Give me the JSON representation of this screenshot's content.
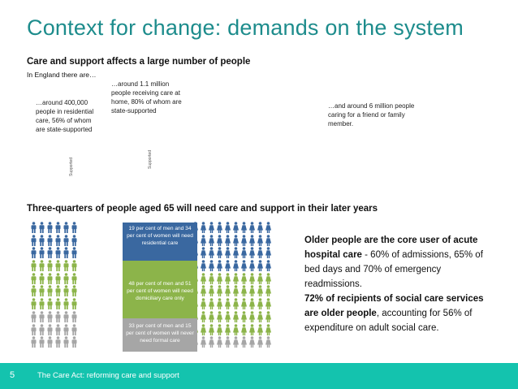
{
  "title": "Context for change: demands on the system",
  "section1": {
    "heading": "Care and support affects a large number of people",
    "subheading": "In England there are…",
    "annotations": [
      "…around 400,000 people in residential care, 56% of whom are state-supported",
      "…around 1.1 million people receiving care at home, 80% of whom are state-supported",
      "…and around 6 million people caring for a friend or family member."
    ],
    "supported_label_1": "Supported",
    "supported_label_2": "Supported"
  },
  "section2": {
    "heading": "Three-quarters of people aged 65 will need care and support in their later years",
    "callouts": [
      "19 per cent of men and 34 per cent of women will need residential care",
      "48 per cent of men and 51 per cent of women will need domiciliary care only",
      "33 per cent of men and 15 per cent of women will never need formal care"
    ],
    "side_text": {
      "p1_bold": "Older people are the core user of acute hospital care",
      "p1_rest": " - 60% of admissions, 65% of bed days and 70% of emergency readmissions.",
      "p2_bold": "72% of recipients of social care services are older people",
      "p2_rest": ", accounting for 56% of expenditure on adult social care."
    },
    "colors": {
      "blue": "#3a68a0",
      "green": "#8cb44a",
      "grey": "#a6a6a6"
    },
    "icon": "person-icon"
  },
  "footer": {
    "page_number": "5",
    "text": "The Care Act: reforming care and support",
    "color": "#14c3ae"
  }
}
